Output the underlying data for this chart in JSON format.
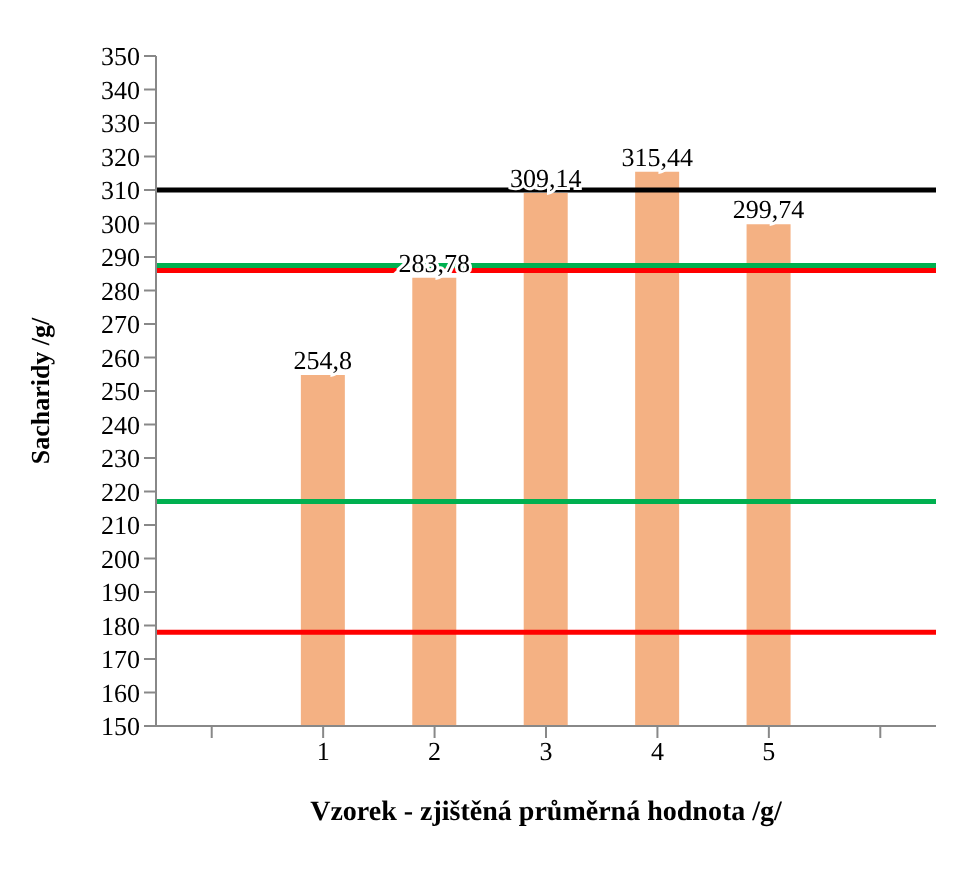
{
  "chart_data": {
    "type": "bar",
    "xlabel": "Vzorek - zjištěná průměrná  hodnota  /g/",
    "ylabel": "Sacharidy /g/",
    "categories": [
      null,
      "1",
      "2",
      "3",
      "4",
      "5",
      null
    ],
    "values": [
      null,
      254.8,
      283.78,
      309.14,
      315.44,
      299.74,
      null
    ],
    "value_labels": [
      null,
      "254,8",
      "283,78",
      "309,14",
      "315,44",
      "299,74",
      null
    ],
    "color": "#f4b183",
    "ylim": [
      150,
      350
    ],
    "yticks": [
      150,
      160,
      170,
      180,
      190,
      200,
      210,
      220,
      230,
      240,
      250,
      260,
      270,
      280,
      290,
      300,
      310,
      320,
      330,
      340,
      350
    ],
    "ref_lines": [
      {
        "axis": "y",
        "value": 310,
        "color": "#000000"
      },
      {
        "axis": "y",
        "value": 287.5,
        "color": "#00b050"
      },
      {
        "axis": "y",
        "value": 286,
        "color": "#ff0000"
      },
      {
        "axis": "y",
        "value": 217,
        "color": "#00b050"
      },
      {
        "axis": "y",
        "value": 178,
        "color": "#ff0000"
      }
    ],
    "grid": false
  }
}
